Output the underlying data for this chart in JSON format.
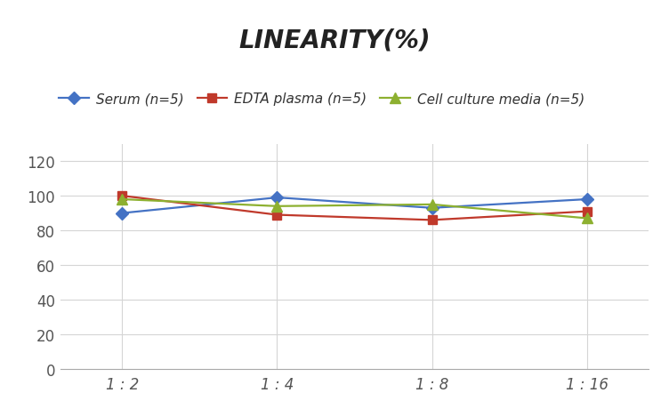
{
  "title": "LINEARITY(%)",
  "x_labels": [
    "1 : 2",
    "1 : 4",
    "1 : 8",
    "1 : 16"
  ],
  "x_positions": [
    0,
    1,
    2,
    3
  ],
  "series": [
    {
      "label": "Serum (n=5)",
      "values": [
        90,
        99,
        93,
        98
      ],
      "color": "#4472C4",
      "marker": "D",
      "markersize": 7,
      "linewidth": 1.6
    },
    {
      "label": "EDTA plasma (n=5)",
      "values": [
        100,
        89,
        86,
        91
      ],
      "color": "#C0392B",
      "marker": "s",
      "markersize": 7,
      "linewidth": 1.6
    },
    {
      "label": "Cell culture media (n=5)",
      "values": [
        98,
        94,
        95,
        87
      ],
      "color": "#8DB030",
      "marker": "^",
      "markersize": 8,
      "linewidth": 1.6
    }
  ],
  "ylim": [
    0,
    130
  ],
  "yticks": [
    0,
    20,
    40,
    60,
    80,
    100,
    120
  ],
  "background_color": "#ffffff",
  "grid_color": "#d5d5d5",
  "title_fontsize": 20,
  "legend_fontsize": 11,
  "tick_fontsize": 12
}
